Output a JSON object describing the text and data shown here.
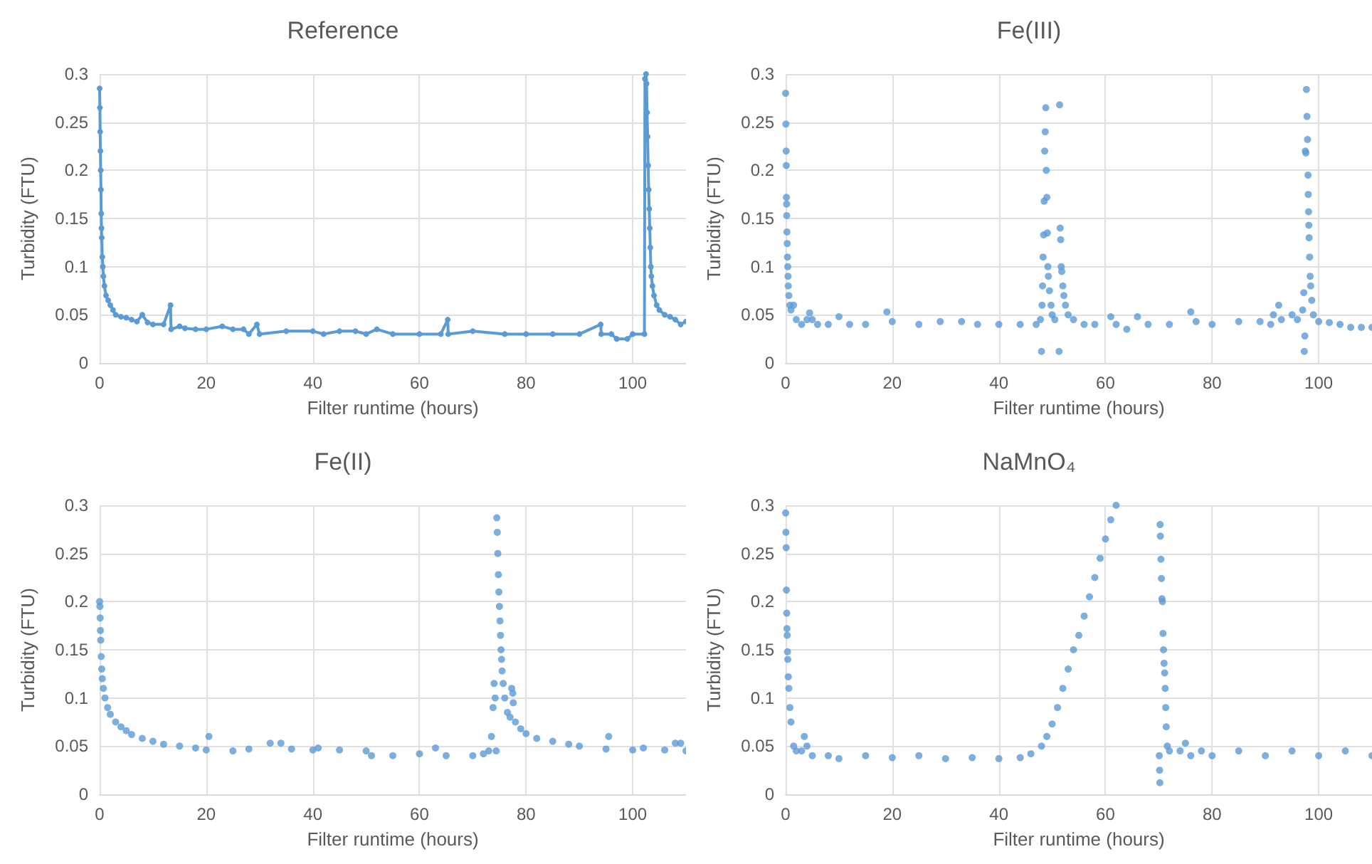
{
  "chart_data": [
    {
      "type": "line",
      "title": "Reference",
      "xlabel": "Filter runtime (hours)",
      "ylabel": "Turbidity (FTU)",
      "xlim": [
        0,
        110
      ],
      "xticks": [
        0,
        20,
        40,
        60,
        80,
        100
      ],
      "ylim": [
        0,
        0.3
      ],
      "yticks": [
        0,
        0.05,
        0.1,
        0.15,
        0.2,
        0.25,
        0.3
      ],
      "grid": true,
      "marker": "circle",
      "line_style": "solid",
      "series": [
        {
          "color": "#5b9bd5",
          "x": [
            0,
            0.05,
            0.1,
            0.15,
            0.2,
            0.25,
            0.3,
            0.35,
            0.4,
            0.5,
            0.6,
            0.7,
            0.9,
            1.2,
            1.6,
            2,
            2.5,
            3,
            4,
            5,
            6,
            7,
            8,
            9,
            10,
            12,
            13.3,
            13.4,
            15,
            16,
            18,
            20,
            23,
            25,
            27,
            28,
            29.5,
            30,
            35,
            40,
            42,
            45,
            48,
            50,
            52,
            55,
            60,
            64,
            65.3,
            65.4,
            70,
            76,
            80,
            85,
            90,
            94,
            94.1,
            96,
            97,
            99,
            100,
            102.2,
            102.3,
            102.5,
            102.6,
            102.7,
            102.8,
            102.9,
            103,
            103.1,
            103.2,
            103.3,
            103.4,
            103.5,
            103.7,
            104,
            104.5,
            105,
            106,
            107,
            108,
            109,
            110
          ],
          "values": [
            0.285,
            0.265,
            0.24,
            0.22,
            0.2,
            0.18,
            0.155,
            0.14,
            0.13,
            0.11,
            0.1,
            0.09,
            0.08,
            0.07,
            0.065,
            0.06,
            0.055,
            0.05,
            0.048,
            0.047,
            0.045,
            0.043,
            0.05,
            0.042,
            0.04,
            0.04,
            0.06,
            0.035,
            0.038,
            0.036,
            0.035,
            0.035,
            0.038,
            0.035,
            0.035,
            0.03,
            0.04,
            0.03,
            0.033,
            0.033,
            0.03,
            0.033,
            0.033,
            0.03,
            0.035,
            0.03,
            0.03,
            0.03,
            0.045,
            0.03,
            0.033,
            0.03,
            0.03,
            0.03,
            0.03,
            0.04,
            0.03,
            0.03,
            0.025,
            0.025,
            0.03,
            0.03,
            0.295,
            0.3,
            0.29,
            0.26,
            0.235,
            0.205,
            0.18,
            0.16,
            0.14,
            0.12,
            0.1,
            0.09,
            0.08,
            0.07,
            0.06,
            0.055,
            0.05,
            0.048,
            0.045,
            0.04,
            0.043
          ]
        }
      ]
    },
    {
      "type": "scatter",
      "title": "Fe(III)",
      "xlabel": "Filter runtime (hours)",
      "ylabel": "Turbidity (FTU)",
      "xlim": [
        0,
        110
      ],
      "xticks": [
        0,
        20,
        40,
        60,
        80,
        100
      ],
      "ylim": [
        0,
        0.3
      ],
      "yticks": [
        0,
        0.05,
        0.1,
        0.15,
        0.2,
        0.25,
        0.3
      ],
      "grid": true,
      "marker": "circle",
      "series": [
        {
          "color": "#5b9bd5",
          "x": [
            0,
            0.05,
            0.1,
            0.12,
            0.15,
            0.18,
            0.2,
            0.25,
            0.3,
            0.35,
            0.4,
            0.45,
            0.5,
            0.6,
            0.8,
            1,
            1.5,
            2,
            3,
            4,
            4.5,
            5,
            6,
            8,
            10,
            12,
            15,
            19,
            20,
            25,
            29,
            33,
            36,
            40,
            44,
            47,
            47.8,
            48,
            48.1,
            48.2,
            48.3,
            48.4,
            48.5,
            48.6,
            48.7,
            48.8,
            48.9,
            49,
            49.1,
            49.2,
            49.3,
            49.5,
            49.8,
            50,
            50.5,
            51.3,
            51.4,
            51.5,
            51.6,
            51.7,
            51.8,
            52,
            52.2,
            52.5,
            53,
            54,
            56,
            58,
            61,
            62,
            64,
            66,
            68,
            72,
            76,
            77,
            80,
            85,
            89,
            91,
            91.5,
            92.5,
            93,
            95,
            96,
            97,
            97.2,
            97.3,
            97.4,
            97.5,
            97.6,
            97.7,
            97.8,
            97.9,
            98,
            98.05,
            98.1,
            98.15,
            98.2,
            98.3,
            98.4,
            98.5,
            98.7,
            99,
            100,
            102,
            104,
            106,
            108,
            110
          ],
          "values": [
            0.28,
            0.248,
            0.22,
            0.205,
            0.172,
            0.165,
            0.153,
            0.136,
            0.124,
            0.11,
            0.1,
            0.09,
            0.08,
            0.07,
            0.06,
            0.055,
            0.06,
            0.045,
            0.04,
            0.045,
            0.052,
            0.045,
            0.04,
            0.04,
            0.048,
            0.04,
            0.04,
            0.053,
            0.043,
            0.04,
            0.043,
            0.043,
            0.04,
            0.04,
            0.04,
            0.04,
            0.045,
            0.012,
            0.06,
            0.08,
            0.11,
            0.133,
            0.168,
            0.22,
            0.24,
            0.265,
            0.2,
            0.172,
            0.135,
            0.1,
            0.09,
            0.075,
            0.06,
            0.05,
            0.045,
            0.012,
            0.268,
            0.14,
            0.128,
            0.1,
            0.095,
            0.08,
            0.07,
            0.06,
            0.05,
            0.045,
            0.04,
            0.04,
            0.048,
            0.04,
            0.035,
            0.048,
            0.04,
            0.04,
            0.053,
            0.043,
            0.04,
            0.043,
            0.043,
            0.04,
            0.05,
            0.06,
            0.045,
            0.05,
            0.045,
            0.055,
            0.073,
            0.012,
            0.028,
            0.22,
            0.218,
            0.284,
            0.256,
            0.232,
            0.195,
            0.175,
            0.157,
            0.143,
            0.13,
            0.11,
            0.09,
            0.08,
            0.065,
            0.05,
            0.043,
            0.042,
            0.04,
            0.037,
            0.037,
            0.037
          ]
        }
      ]
    },
    {
      "type": "scatter",
      "title": "Fe(II)",
      "xlabel": "Filter runtime (hours)",
      "ylabel": "Turbidity (FTU)",
      "xlim": [
        0,
        110
      ],
      "xticks": [
        0,
        20,
        40,
        60,
        80,
        100
      ],
      "ylim": [
        0,
        0.3
      ],
      "yticks": [
        0,
        0.05,
        0.1,
        0.15,
        0.2,
        0.25,
        0.3
      ],
      "grid": true,
      "marker": "circle",
      "series": [
        {
          "color": "#5b9bd5",
          "x": [
            0,
            0.05,
            0.1,
            0.15,
            0.2,
            0.3,
            0.4,
            0.5,
            0.7,
            1,
            1.5,
            2,
            3,
            4,
            5,
            6,
            8,
            10,
            12,
            15,
            18,
            20,
            20.5,
            25,
            28,
            32,
            34,
            36,
            40,
            41,
            45,
            50,
            51,
            55,
            60,
            63,
            65,
            70,
            72,
            73,
            73.5,
            73.8,
            74,
            74.2,
            74.4,
            74.5,
            74.6,
            74.7,
            74.8,
            74.9,
            75,
            75.1,
            75.2,
            75.3,
            75.4,
            75.5,
            75.7,
            76,
            76.5,
            77,
            77.3,
            77.5,
            77.6,
            78,
            79,
            80,
            82,
            85,
            88,
            90,
            95,
            95.5,
            100,
            102,
            106,
            108,
            109,
            110
          ],
          "values": [
            0.2,
            0.195,
            0.183,
            0.17,
            0.16,
            0.143,
            0.13,
            0.12,
            0.11,
            0.1,
            0.09,
            0.083,
            0.075,
            0.07,
            0.066,
            0.062,
            0.058,
            0.055,
            0.052,
            0.05,
            0.048,
            0.046,
            0.06,
            0.045,
            0.047,
            0.053,
            0.053,
            0.047,
            0.046,
            0.048,
            0.046,
            0.045,
            0.04,
            0.04,
            0.042,
            0.048,
            0.04,
            0.04,
            0.042,
            0.045,
            0.06,
            0.09,
            0.115,
            0.1,
            0.045,
            0.287,
            0.272,
            0.25,
            0.228,
            0.21,
            0.195,
            0.18,
            0.165,
            0.15,
            0.14,
            0.128,
            0.115,
            0.1,
            0.085,
            0.08,
            0.11,
            0.105,
            0.095,
            0.075,
            0.068,
            0.063,
            0.058,
            0.055,
            0.052,
            0.05,
            0.047,
            0.06,
            0.046,
            0.048,
            0.046,
            0.053,
            0.053,
            0.045
          ]
        }
      ]
    },
    {
      "type": "scatter",
      "title": "NaMnO₄",
      "xlabel": "Filter runtime (hours)",
      "ylabel": "Turbidity (FTU)",
      "xlim": [
        0,
        110
      ],
      "xticks": [
        0,
        20,
        40,
        60,
        80,
        100
      ],
      "ylim": [
        0,
        0.3
      ],
      "yticks": [
        0,
        0.05,
        0.1,
        0.15,
        0.2,
        0.25,
        0.3
      ],
      "grid": true,
      "marker": "circle",
      "series": [
        {
          "color": "#5b9bd5",
          "x": [
            0,
            0.05,
            0.1,
            0.15,
            0.2,
            0.25,
            0.3,
            0.35,
            0.4,
            0.5,
            0.6,
            0.8,
            1,
            1.5,
            2,
            3,
            3.5,
            4,
            5,
            8,
            10,
            15,
            20,
            25,
            30,
            35,
            40,
            44,
            46,
            48,
            49,
            50,
            51,
            52,
            53,
            54,
            55,
            56,
            57,
            58,
            59,
            60,
            61,
            62,
            70.1,
            70.15,
            70.2,
            70.25,
            70.3,
            70.4,
            70.5,
            70.6,
            70.7,
            70.8,
            70.9,
            71,
            71.1,
            71.2,
            71.3,
            71.4,
            71.6,
            72,
            74,
            75,
            76,
            78,
            80,
            85,
            90,
            95,
            100,
            105,
            110
          ],
          "values": [
            0.292,
            0.272,
            0.256,
            0.212,
            0.188,
            0.172,
            0.165,
            0.148,
            0.14,
            0.122,
            0.11,
            0.09,
            0.075,
            0.05,
            0.045,
            0.045,
            0.06,
            0.05,
            0.04,
            0.04,
            0.037,
            0.04,
            0.038,
            0.04,
            0.037,
            0.038,
            0.037,
            0.038,
            0.042,
            0.05,
            0.06,
            0.073,
            0.09,
            0.11,
            0.13,
            0.15,
            0.165,
            0.185,
            0.205,
            0.225,
            0.245,
            0.265,
            0.285,
            0.3,
            0.04,
            0.025,
            0.012,
            0.28,
            0.268,
            0.244,
            0.224,
            0.203,
            0.2,
            0.167,
            0.15,
            0.136,
            0.126,
            0.11,
            0.09,
            0.07,
            0.05,
            0.045,
            0.045,
            0.053,
            0.04,
            0.045,
            0.04,
            0.045,
            0.04,
            0.045,
            0.04,
            0.045,
            0.04
          ]
        }
      ]
    }
  ]
}
